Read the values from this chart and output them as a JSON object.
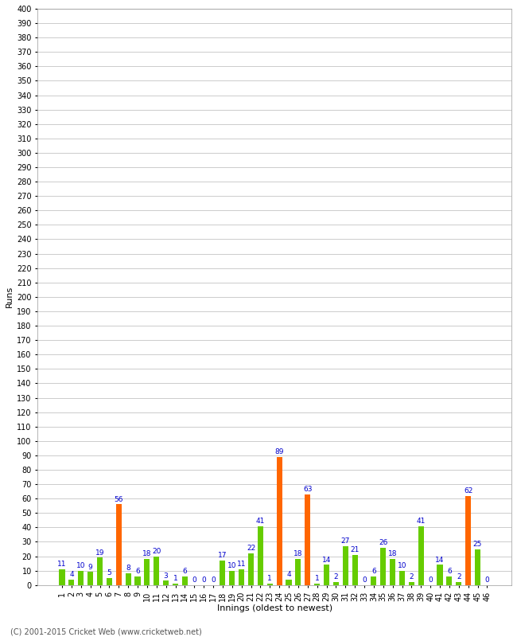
{
  "innings": [
    1,
    2,
    3,
    4,
    5,
    6,
    7,
    8,
    9,
    10,
    11,
    12,
    13,
    14,
    15,
    16,
    17,
    18,
    19,
    20,
    21,
    22,
    23,
    24,
    25,
    26,
    27,
    28,
    29,
    30,
    31,
    32,
    33,
    34,
    35,
    36,
    37,
    38,
    39,
    40,
    41,
    42,
    43,
    44,
    45,
    46
  ],
  "values": [
    11,
    4,
    10,
    9,
    19,
    5,
    56,
    8,
    6,
    18,
    20,
    3,
    1,
    6,
    0,
    0,
    0,
    17,
    10,
    11,
    22,
    41,
    1,
    89,
    4,
    18,
    63,
    1,
    14,
    2,
    27,
    21,
    0,
    6,
    26,
    18,
    10,
    2,
    41,
    0,
    14,
    6,
    2,
    62,
    25,
    0
  ],
  "colors": [
    "#66cc00",
    "#66cc00",
    "#66cc00",
    "#66cc00",
    "#66cc00",
    "#66cc00",
    "#ff6600",
    "#66cc00",
    "#66cc00",
    "#66cc00",
    "#66cc00",
    "#66cc00",
    "#66cc00",
    "#66cc00",
    "#66cc00",
    "#66cc00",
    "#66cc00",
    "#66cc00",
    "#66cc00",
    "#66cc00",
    "#66cc00",
    "#66cc00",
    "#66cc00",
    "#ff6600",
    "#66cc00",
    "#66cc00",
    "#ff6600",
    "#66cc00",
    "#66cc00",
    "#66cc00",
    "#66cc00",
    "#66cc00",
    "#66cc00",
    "#66cc00",
    "#66cc00",
    "#66cc00",
    "#66cc00",
    "#66cc00",
    "#66cc00",
    "#66cc00",
    "#66cc00",
    "#66cc00",
    "#66cc00",
    "#ff6600",
    "#66cc00",
    "#66cc00"
  ],
  "ylabel": "Runs",
  "xlabel": "Innings (oldest to newest)",
  "ylim": [
    0,
    400
  ],
  "yticks": [
    0,
    10,
    20,
    30,
    40,
    50,
    60,
    70,
    80,
    90,
    100,
    110,
    120,
    130,
    140,
    150,
    160,
    170,
    180,
    190,
    200,
    210,
    220,
    230,
    240,
    250,
    260,
    270,
    280,
    290,
    300,
    310,
    320,
    330,
    340,
    350,
    360,
    370,
    380,
    390,
    400
  ],
  "footer": "(C) 2001-2015 Cricket Web (www.cricketweb.net)",
  "background_color": "#ffffff",
  "grid_color": "#cccccc",
  "label_color": "#0000cc",
  "bar_label_fontsize": 6.5,
  "tick_fontsize": 7.0,
  "ylabel_fontsize": 8,
  "xlabel_fontsize": 8
}
